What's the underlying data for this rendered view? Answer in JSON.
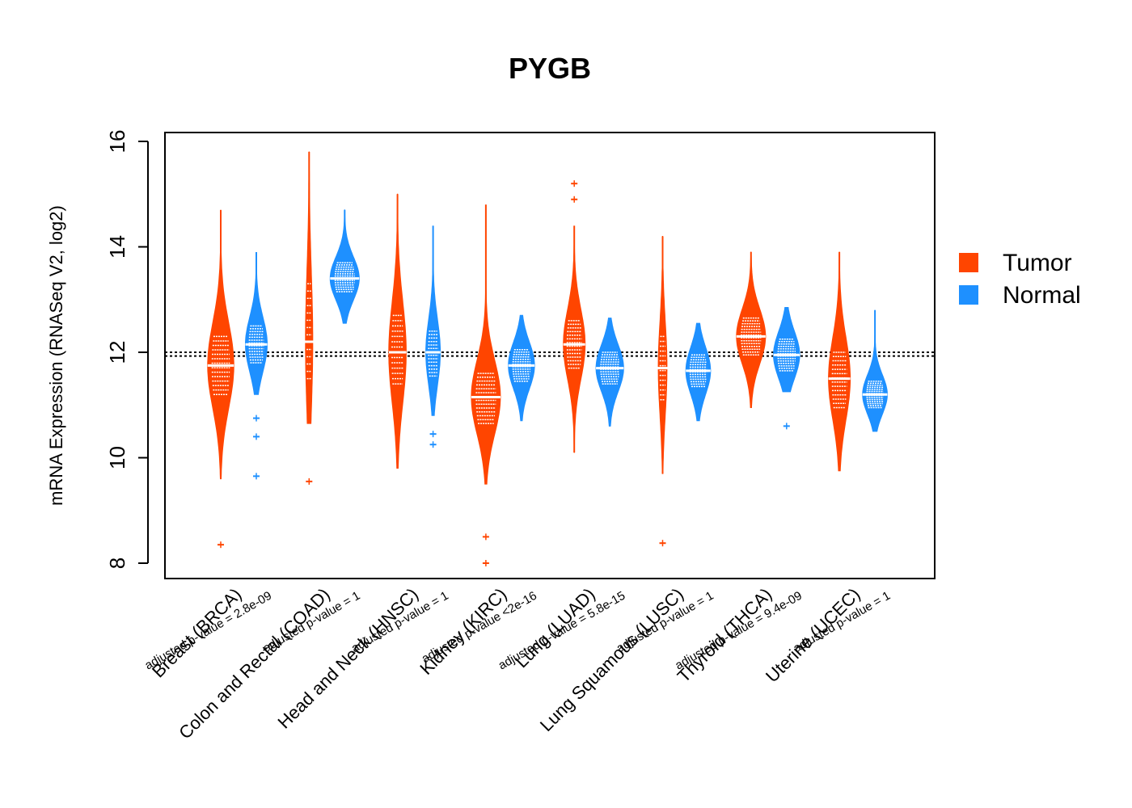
{
  "chart_data": {
    "type": "violin",
    "title": "PYGB",
    "ylabel": "mRNA Expression (RNASeq V2, log2)",
    "xlabel": "",
    "ylim": [
      7.7,
      16.2
    ],
    "yticks": [
      "8",
      "10",
      "12",
      "14",
      "16"
    ],
    "reference_lines": [
      11.93,
      12.0
    ],
    "legend": {
      "placement": "right",
      "entries": [
        {
          "label": "Tumor",
          "color": "#FF4500"
        },
        {
          "label": "Normal",
          "color": "#1E90FF"
        }
      ]
    },
    "categories": [
      {
        "label": "Breast (BRCA)",
        "pvalue": "adjusted p-value = 2.8e-09"
      },
      {
        "label": "Colon and Rectal (COAD)",
        "pvalue": "adjusted p-value = 1"
      },
      {
        "label": "Head and Neck (HNSC)",
        "pvalue": "adjusted p-value = 1"
      },
      {
        "label": "Kidney (KIRC)",
        "pvalue": "adjusted p-value <2e-16"
      },
      {
        "label": "Lung (LUAD)",
        "pvalue": "adjusted p-value = 5.8e-15"
      },
      {
        "label": "Lung Squamous (LUSC)",
        "pvalue": "adjusted p-value = 1"
      },
      {
        "label": "Thyroid (THCA)",
        "pvalue": "adjusted p-value = 9.4e-09"
      },
      {
        "label": "Uterine (UCEC)",
        "pvalue": "adjusted p-value = 1"
      }
    ],
    "series": [
      {
        "name": "Tumor",
        "color": "#FF4500",
        "violins": [
          {
            "min": 9.6,
            "max": 14.7,
            "median": 11.75,
            "q1": 11.2,
            "q3": 12.3,
            "width": 0.9,
            "outliers": [
              8.35
            ]
          },
          {
            "min": 10.65,
            "max": 15.8,
            "median": 12.2,
            "q1": 11.5,
            "q3": 13.3,
            "width": 0.25,
            "outliers": [
              9.55
            ]
          },
          {
            "min": 9.8,
            "max": 15.0,
            "median": 12.0,
            "q1": 11.4,
            "q3": 12.7,
            "width": 0.6,
            "outliers": []
          },
          {
            "min": 9.5,
            "max": 14.8,
            "median": 11.15,
            "q1": 10.65,
            "q3": 11.6,
            "width": 1.0,
            "outliers": [
              8.0,
              8.5
            ]
          },
          {
            "min": 10.1,
            "max": 14.4,
            "median": 12.15,
            "q1": 11.7,
            "q3": 12.6,
            "width": 0.75,
            "outliers": [
              14.9,
              15.2
            ]
          },
          {
            "min": 9.7,
            "max": 14.2,
            "median": 11.7,
            "q1": 11.1,
            "q3": 12.3,
            "width": 0.3,
            "outliers": [
              8.38
            ]
          },
          {
            "min": 10.95,
            "max": 13.9,
            "median": 12.3,
            "q1": 11.95,
            "q3": 12.65,
            "width": 1.0,
            "outliers": []
          },
          {
            "min": 9.75,
            "max": 13.9,
            "median": 11.5,
            "q1": 10.95,
            "q3": 12.0,
            "width": 0.75,
            "outliers": []
          }
        ]
      },
      {
        "name": "Normal",
        "color": "#1E90FF",
        "violins": [
          {
            "min": 11.2,
            "max": 13.9,
            "median": 12.15,
            "q1": 11.8,
            "q3": 12.5,
            "width": 0.75,
            "outliers": [
              10.4,
              10.75,
              9.65
            ]
          },
          {
            "min": 12.55,
            "max": 14.7,
            "median": 13.4,
            "q1": 13.15,
            "q3": 13.7,
            "width": 1.0,
            "outliers": []
          },
          {
            "min": 10.8,
            "max": 14.4,
            "median": 12.0,
            "q1": 11.55,
            "q3": 12.4,
            "width": 0.5,
            "outliers": [
              10.25,
              10.45
            ]
          },
          {
            "min": 10.7,
            "max": 12.7,
            "median": 11.75,
            "q1": 11.45,
            "q3": 12.05,
            "width": 0.9,
            "outliers": []
          },
          {
            "min": 10.6,
            "max": 12.65,
            "median": 11.7,
            "q1": 11.4,
            "q3": 12.0,
            "width": 0.95,
            "outliers": []
          },
          {
            "min": 10.7,
            "max": 12.55,
            "median": 11.65,
            "q1": 11.35,
            "q3": 11.95,
            "width": 0.85,
            "outliers": []
          },
          {
            "min": 11.25,
            "max": 12.85,
            "median": 11.95,
            "q1": 11.65,
            "q3": 12.25,
            "width": 0.9,
            "outliers": [
              10.6
            ]
          },
          {
            "min": 10.5,
            "max": 12.8,
            "median": 11.2,
            "q1": 10.95,
            "q3": 11.45,
            "width": 0.85,
            "outliers": []
          }
        ]
      }
    ]
  }
}
